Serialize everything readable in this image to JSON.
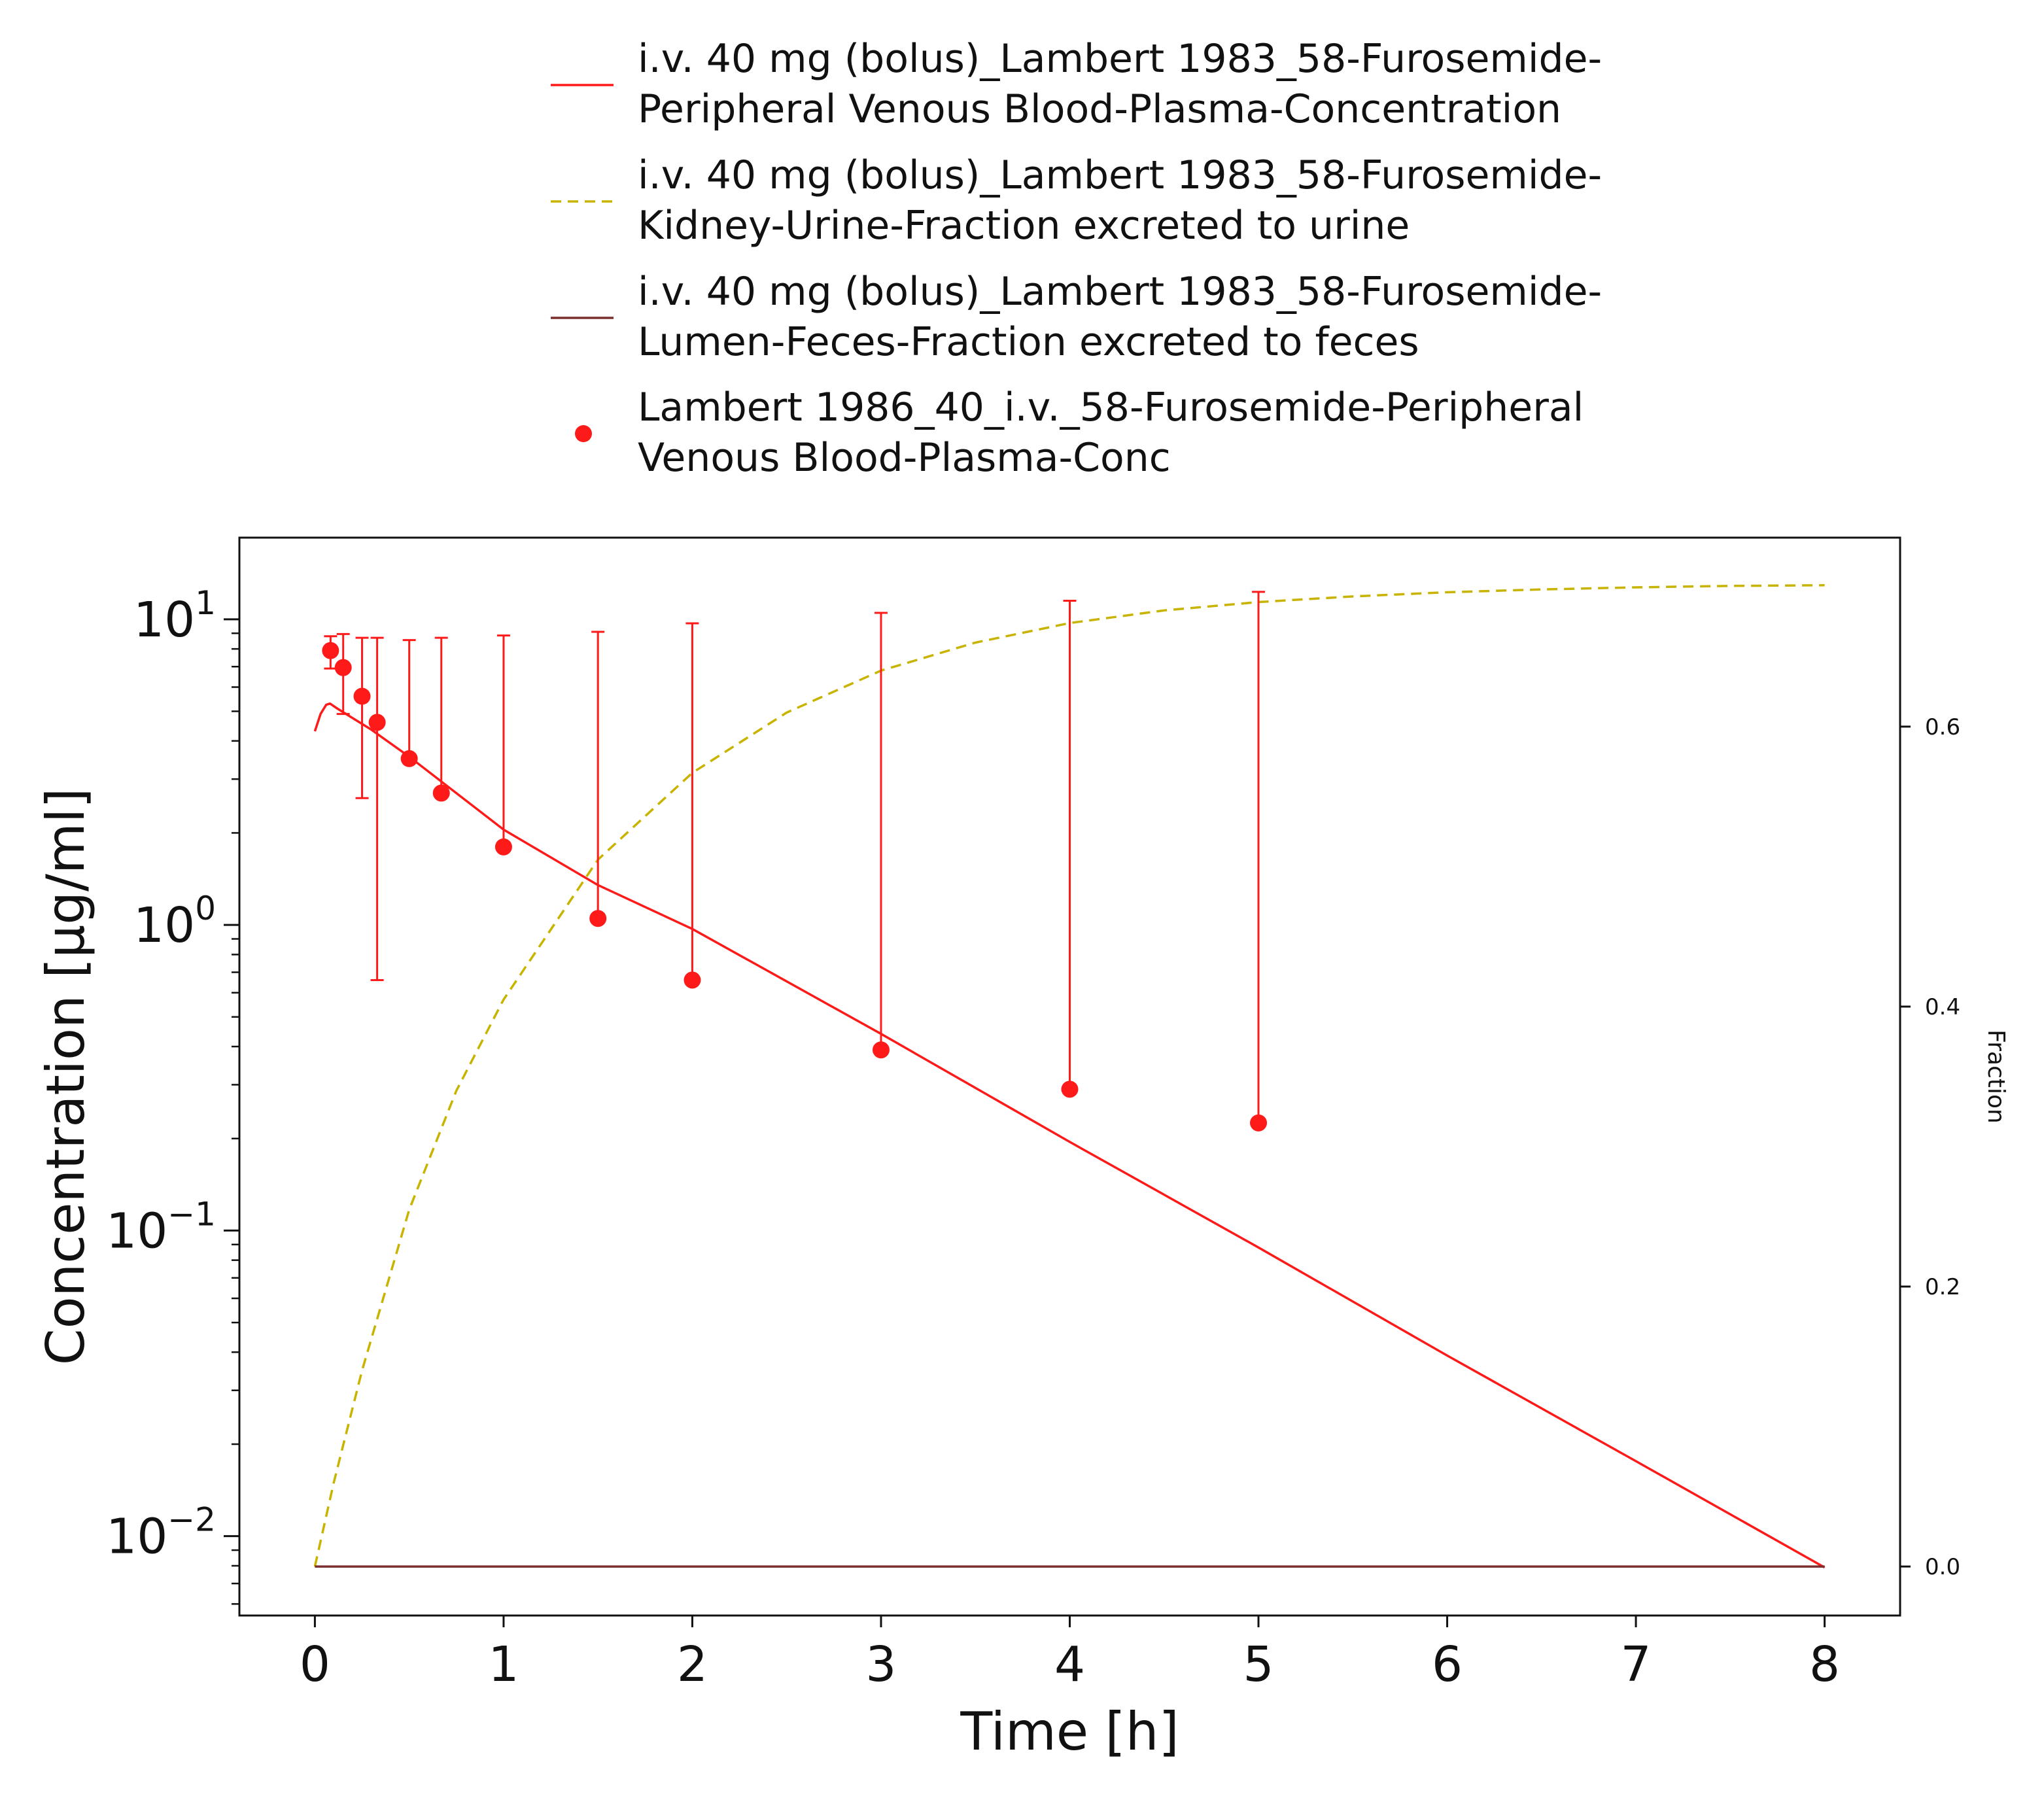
{
  "chart_data": {
    "type": "line",
    "xlabel": "Time [h]",
    "ylabel": "Concentration [µg/ml]",
    "y2label": "Fraction",
    "xlim": [
      -0.4,
      8.4
    ],
    "ylim": [
      0.0055,
      18.5
    ],
    "yscale": "log",
    "y2lim": [
      -0.035,
      0.735
    ],
    "x_ticks": [
      "0",
      "1",
      "2",
      "3",
      "4",
      "5",
      "6",
      "7",
      "8"
    ],
    "y_ticks": [
      {
        "value": 10,
        "base": "10",
        "exp": "1"
      },
      {
        "value": 1,
        "base": "10",
        "exp": "0"
      },
      {
        "value": 0.1,
        "base": "10",
        "exp": "−1"
      },
      {
        "value": 0.01,
        "base": "10",
        "exp": "−2"
      }
    ],
    "y2_ticks": [
      "0.0",
      "0.2",
      "0.4",
      "0.6"
    ],
    "grid": false,
    "legend_position": "top",
    "series": [
      {
        "name": "i.v. 40 mg (bolus)_Lambert 1983_58-Furosemide-Peripheral Venous Blood-Plasma-Concentration",
        "name_lines": [
          "i.v. 40 mg (bolus)_Lambert 1983_58-Furosemide-",
          "Peripheral Venous Blood-Plasma-Concentration"
        ],
        "axis": "left",
        "style": "solid",
        "color": "#ff1a1a",
        "x": [
          0.0,
          0.03,
          0.06,
          0.08,
          0.12,
          0.2,
          0.3,
          0.5,
          1.0,
          1.5,
          2.0,
          3.0,
          4.0,
          5.0,
          6.0,
          7.0,
          8.0
        ],
        "y": [
          4.3,
          4.9,
          5.25,
          5.3,
          5.1,
          4.75,
          4.35,
          3.55,
          2.05,
          1.35,
          0.97,
          0.44,
          0.195,
          0.088,
          0.039,
          0.0176,
          0.0079
        ]
      },
      {
        "name": "i.v. 40 mg (bolus)_Lambert 1983_58-Furosemide-Kidney-Urine-Fraction excreted to urine",
        "name_lines": [
          "i.v. 40 mg (bolus)_Lambert 1983_58-Furosemide-",
          "Kidney-Urine-Fraction excreted to urine"
        ],
        "axis": "right",
        "style": "dashed",
        "color": "#c8b400",
        "x": [
          0.0,
          0.1,
          0.25,
          0.5,
          0.75,
          1.0,
          1.5,
          2.0,
          2.5,
          3.0,
          3.5,
          4.0,
          4.5,
          5.0,
          5.5,
          6.0,
          6.5,
          7.0,
          7.5,
          8.0
        ],
        "y": [
          0.0,
          0.06,
          0.14,
          0.255,
          0.34,
          0.405,
          0.505,
          0.567,
          0.61,
          0.64,
          0.66,
          0.674,
          0.683,
          0.689,
          0.693,
          0.696,
          0.698,
          0.6995,
          0.7005,
          0.701
        ]
      },
      {
        "name": "i.v. 40 mg (bolus)_Lambert 1983_58-Furosemide-Lumen-Feces-Fraction excreted to feces",
        "name_lines": [
          "i.v. 40 mg (bolus)_Lambert 1983_58-Furosemide-",
          "Lumen-Feces-Fraction excreted to feces"
        ],
        "axis": "right",
        "style": "solid",
        "color": "#7a2e2e",
        "x": [
          0.0,
          8.0
        ],
        "y": [
          0.0,
          0.0
        ]
      },
      {
        "name": "Lambert 1986_40_i.v._58-Furosemide-Peripheral Venous Blood-Plasma-Conc",
        "name_lines": [
          "Lambert 1986_40_i.v._58-Furosemide-Peripheral",
          "Venous Blood-Plasma-Conc"
        ],
        "axis": "left",
        "style": "markers",
        "color": "#ff1a1a",
        "x": [
          0.083,
          0.15,
          0.25,
          0.33,
          0.5,
          0.67,
          1.0,
          1.5,
          2.0,
          3.0,
          4.0,
          5.0
        ],
        "y": [
          7.9,
          6.95,
          5.6,
          4.6,
          3.5,
          2.7,
          1.8,
          1.05,
          0.66,
          0.39,
          0.29,
          0.225
        ],
        "err_upper": [
          8.8,
          8.95,
          8.7,
          8.7,
          8.55,
          8.7,
          8.85,
          9.1,
          9.7,
          10.5,
          11.5,
          12.3
        ],
        "err_lower": [
          6.9,
          4.9,
          2.6,
          0.66,
          null,
          null,
          null,
          null,
          null,
          null,
          null,
          null
        ]
      }
    ]
  }
}
